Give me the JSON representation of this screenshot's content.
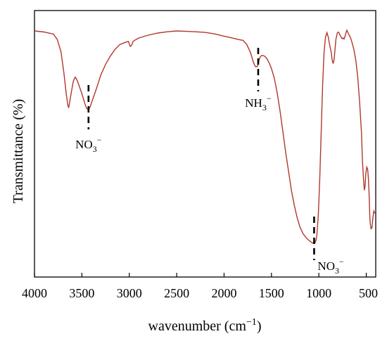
{
  "chart_data": {
    "type": "line",
    "xlabel": "wavenumber (cm",
    "xlabel_sup": "−1",
    "xlabel_close": ")",
    "ylabel": "Transmittance (%)",
    "xlim": [
      4000,
      400
    ],
    "x_reversed": true,
    "ylim": [
      0,
      100
    ],
    "grid": false,
    "line_color": "#b0382c",
    "x_ticks": [
      4000,
      3500,
      3000,
      2500,
      2000,
      1500,
      1000,
      500
    ],
    "x_tick_labels": [
      "4000",
      "3500",
      "3000",
      "2500",
      "2000",
      "1500",
      "1000",
      "500"
    ],
    "series": [
      {
        "x": [
          4000,
          3900,
          3800,
          3760,
          3720,
          3690,
          3665,
          3650,
          3640,
          3630,
          3610,
          3590,
          3570,
          3550,
          3530,
          3500,
          3470,
          3450,
          3430,
          3415,
          3400,
          3380,
          3350,
          3300,
          3250,
          3200,
          3150,
          3100,
          3050,
          3010,
          2990,
          2975,
          2960,
          2930,
          2900,
          2800,
          2700,
          2600,
          2500,
          2400,
          2300,
          2200,
          2100,
          2000,
          1950,
          1900,
          1850,
          1800,
          1760,
          1720,
          1690,
          1670,
          1650,
          1640,
          1630,
          1620,
          1605,
          1590,
          1570,
          1550,
          1520,
          1500,
          1470,
          1440,
          1410,
          1380,
          1350,
          1320,
          1290,
          1260,
          1230,
          1200,
          1170,
          1140,
          1110,
          1090,
          1070,
          1055,
          1045,
          1040,
          1030,
          1020,
          1005,
          990,
          975,
          960,
          945,
          930,
          915,
          900,
          885,
          870,
          860,
          850,
          840,
          830,
          820,
          805,
          795,
          785,
          775,
          765,
          755,
          745,
          735,
          725,
          715,
          705,
          695,
          685,
          675,
          665,
          650,
          630,
          610,
          590,
          570,
          550,
          540,
          530,
          520,
          512,
          505,
          495,
          485,
          478,
          470,
          463,
          458,
          450,
          440,
          430,
          420,
          410
        ],
        "y": [
          100,
          99.5,
          98.5,
          96,
          90,
          80,
          70,
          65,
          63.3,
          65.5,
          71,
          76,
          78,
          76.5,
          74,
          70,
          65.5,
          63,
          62.5,
          63.5,
          65.5,
          68,
          72,
          79,
          84,
          88,
          91.2,
          93.5,
          94.4,
          95,
          92.6,
          93.2,
          95,
          95.9,
          96.6,
          98,
          99,
          99.6,
          100,
          99.8,
          99.6,
          99.3,
          98.6,
          97.5,
          97,
          96.5,
          95.9,
          95.5,
          93.5,
          89.5,
          85,
          83,
          83,
          84.4,
          86.2,
          87.5,
          88.3,
          88.3,
          87.9,
          86.9,
          84.4,
          82,
          77.5,
          70.5,
          62,
          52,
          42,
          33,
          24,
          17,
          11,
          6.5,
          3.5,
          1.6,
          0.3,
          -0.5,
          -1.1,
          -1.4,
          -1.3,
          -1,
          0,
          3,
          13,
          30,
          52,
          75,
          90,
          97,
          99.2,
          97,
          93,
          89.8,
          86.3,
          84.4,
          86,
          91,
          96,
          99.1,
          99.5,
          98.9,
          97.7,
          97.1,
          96.3,
          96.6,
          96.1,
          97.3,
          99,
          100.3,
          99.4,
          98.4,
          97.6,
          96.6,
          94.5,
          91,
          86,
          78,
          66,
          51,
          38,
          30,
          24,
          26,
          32,
          35,
          34,
          30,
          22,
          12,
          8,
          5.6,
          6,
          11,
          14,
          13
        ]
      }
    ],
    "annotations": [
      {
        "text": "NO",
        "sub": "3",
        "sup": "−",
        "x": 3430
      },
      {
        "text": "NH",
        "sub": "3",
        "sup": "−",
        "x": 1640
      },
      {
        "text": "NO",
        "sub": "3",
        "sup": "−",
        "x": 1050
      }
    ]
  }
}
